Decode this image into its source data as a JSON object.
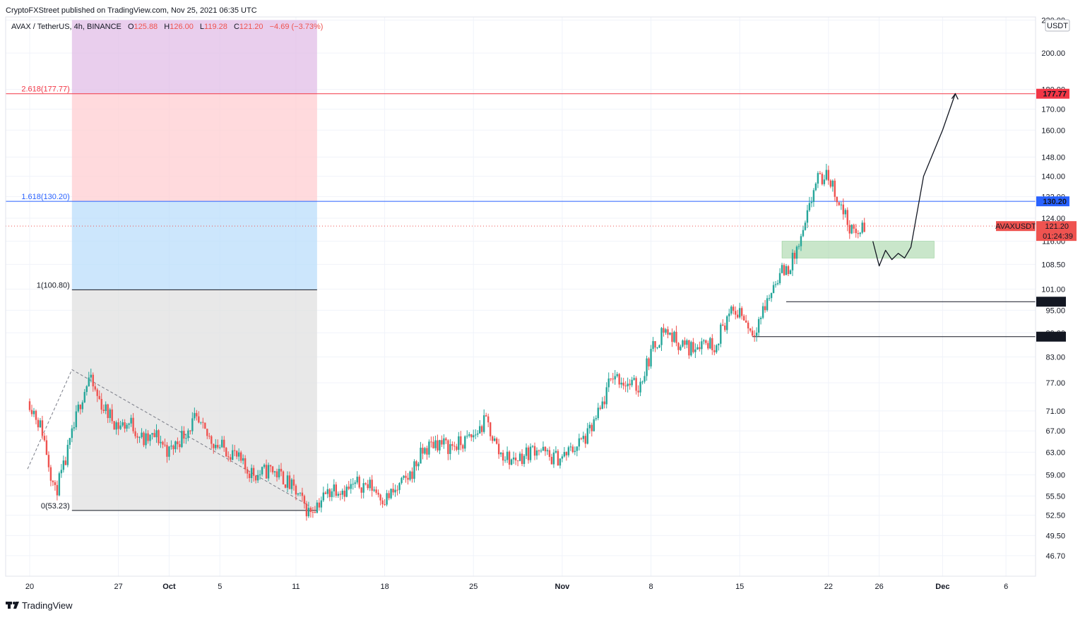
{
  "header": {
    "published": "CryptoFXStreet published on TradingView.com, Nov 25, 2021 06:35 UTC"
  },
  "legend": {
    "symbol": "AVAX / TetherUS, 4h, BINANCE",
    "o_label": "O",
    "o_value": "125.88",
    "h_label": "H",
    "h_value": "126.00",
    "l_label": "L",
    "l_value": "119.28",
    "c_label": "C",
    "c_value": "121.20",
    "change": "−4.69 (−3.73%)"
  },
  "footer": {
    "brand": "TradingView"
  },
  "colors": {
    "up": "#26a69a",
    "down": "#ef5350",
    "fib_high": "#f23645",
    "fib_mid": "#2962ff",
    "fib_base": "#131722",
    "support_zone": "#a5d6a7",
    "fib_zone_top": "#e1bee7",
    "fib_zone_red": "#ffcdd2",
    "fib_zone_blue": "#bbdefb",
    "fib_zone_grey": "#e0e0e0"
  },
  "chart_data": {
    "type": "candlestick",
    "symbol": "AVAXUSDT",
    "timeframe": "4h",
    "exchange": "BINANCE",
    "quote": "USDT",
    "y_scale": "log",
    "ylim": [
      44,
      222
    ],
    "y_ticks": [
      "220.00",
      "200.00",
      "180.00",
      "170.00",
      "160.00",
      "148.00",
      "140.00",
      "132.00",
      "124.00",
      "116.00",
      "108.50",
      "101.00",
      "95.00",
      "89.00",
      "83.00",
      "77.00",
      "71.00",
      "67.00",
      "63.00",
      "59.00",
      "55.50",
      "52.50",
      "49.50",
      "46.70"
    ],
    "x_ticks": [
      {
        "label": "20",
        "date": "2021-09-20"
      },
      {
        "label": "27",
        "date": "2021-09-27"
      },
      {
        "label": "Oct",
        "date": "2021-10-01"
      },
      {
        "label": "5",
        "date": "2021-10-05"
      },
      {
        "label": "11",
        "date": "2021-10-11"
      },
      {
        "label": "18",
        "date": "2021-10-18"
      },
      {
        "label": "25",
        "date": "2021-10-25"
      },
      {
        "label": "Nov",
        "date": "2021-11-01"
      },
      {
        "label": "8",
        "date": "2021-11-08"
      },
      {
        "label": "15",
        "date": "2021-11-15"
      },
      {
        "label": "22",
        "date": "2021-11-22"
      },
      {
        "label": "26",
        "date": "2021-11-26"
      },
      {
        "label": "Dec",
        "date": "2021-12-01"
      },
      {
        "label": "6",
        "date": "2021-12-06"
      }
    ],
    "price_path": [
      [
        "2021-09-20T00:00",
        73
      ],
      [
        "2021-09-21T00:00",
        67
      ],
      [
        "2021-09-22T00:00",
        56
      ],
      [
        "2021-09-22T16:00",
        60
      ],
      [
        "2021-09-23T08:00",
        66
      ],
      [
        "2021-09-24T00:00",
        73
      ],
      [
        "2021-09-24T16:00",
        78
      ],
      [
        "2021-09-25T08:00",
        74
      ],
      [
        "2021-09-26T00:00",
        71
      ],
      [
        "2021-09-27T00:00",
        68
      ],
      [
        "2021-09-28T00:00",
        68.5
      ],
      [
        "2021-09-29T00:00",
        65
      ],
      [
        "2021-09-30T00:00",
        66
      ],
      [
        "2021-10-01T00:00",
        63
      ],
      [
        "2021-10-02T00:00",
        66
      ],
      [
        "2021-10-03T00:00",
        69
      ],
      [
        "2021-10-04T00:00",
        66
      ],
      [
        "2021-10-05T00:00",
        64
      ],
      [
        "2021-10-06T00:00",
        63
      ],
      [
        "2021-10-07T00:00",
        60
      ],
      [
        "2021-10-08T00:00",
        59
      ],
      [
        "2021-10-09T00:00",
        60
      ],
      [
        "2021-10-10T00:00",
        58.5
      ],
      [
        "2021-10-11T00:00",
        56
      ],
      [
        "2021-10-12T00:00",
        53
      ],
      [
        "2021-10-13T00:00",
        55
      ],
      [
        "2021-10-14T00:00",
        57
      ],
      [
        "2021-10-15T00:00",
        56.5
      ],
      [
        "2021-10-16T00:00",
        57.5
      ],
      [
        "2021-10-17T00:00",
        57
      ],
      [
        "2021-10-18T00:00",
        55
      ],
      [
        "2021-10-19T00:00",
        56.5
      ],
      [
        "2021-10-20T00:00",
        59
      ],
      [
        "2021-10-21T00:00",
        63
      ],
      [
        "2021-10-22T00:00",
        65
      ],
      [
        "2021-10-23T00:00",
        64
      ],
      [
        "2021-10-24T00:00",
        64.5
      ],
      [
        "2021-10-25T00:00",
        66
      ],
      [
        "2021-10-26T00:00",
        69
      ],
      [
        "2021-10-27T00:00",
        63
      ],
      [
        "2021-10-28T00:00",
        61.5
      ],
      [
        "2021-10-29T00:00",
        62.5
      ],
      [
        "2021-10-30T00:00",
        64
      ],
      [
        "2021-10-31T00:00",
        62
      ],
      [
        "2021-11-01T00:00",
        62
      ],
      [
        "2021-11-02T00:00",
        64
      ],
      [
        "2021-11-03T00:00",
        66
      ],
      [
        "2021-11-04T00:00",
        71
      ],
      [
        "2021-11-05T00:00",
        79
      ],
      [
        "2021-11-06T00:00",
        77
      ],
      [
        "2021-11-07T00:00",
        76
      ],
      [
        "2021-11-08T00:00",
        84
      ],
      [
        "2021-11-09T00:00",
        90
      ],
      [
        "2021-11-10T00:00",
        87
      ],
      [
        "2021-11-11T00:00",
        85
      ],
      [
        "2021-11-12T00:00",
        87
      ],
      [
        "2021-11-13T00:00",
        86
      ],
      [
        "2021-11-14T00:00",
        93
      ],
      [
        "2021-11-15T00:00",
        95
      ],
      [
        "2021-11-16T00:00",
        89
      ],
      [
        "2021-11-17T00:00",
        96
      ],
      [
        "2021-11-18T00:00",
        105
      ],
      [
        "2021-11-19T00:00",
        108
      ],
      [
        "2021-11-20T00:00",
        118
      ],
      [
        "2021-11-21T00:00",
        138
      ],
      [
        "2021-11-22T00:00",
        140
      ],
      [
        "2021-11-23T00:00",
        128
      ],
      [
        "2021-11-24T00:00",
        118
      ],
      [
        "2021-11-25T00:00",
        121.2
      ]
    ],
    "current_price": "121.20",
    "current_label": "AVAXUSDT",
    "countdown": "01:24:39",
    "fib_levels": [
      {
        "ratio": "2.618",
        "price": 177.77,
        "label": "2.618(177.77)",
        "axis_label": "177.77"
      },
      {
        "ratio": "1.618",
        "price": 130.2,
        "label": "1.618(130.20)",
        "axis_label": "130.20"
      },
      {
        "ratio": "1",
        "price": 100.8,
        "label": "1(100.80)"
      },
      {
        "ratio": "0",
        "price": 53.23,
        "label": "0(53.23)"
      }
    ],
    "fib_range": {
      "from": "2021-09-23T08:00",
      "to": "2021-10-12T16:00",
      "top": 220
    },
    "fib_anchor_line": {
      "from": [
        "2021-09-19T20:00",
        60
      ],
      "peak": [
        "2021-09-23T08:00",
        80
      ],
      "to": [
        "2021-10-12T00:00",
        54
      ]
    },
    "support_zone": {
      "from": "2021-11-18T08:00",
      "to": "2021-11-30T08:00",
      "top": 116,
      "bottom": 110.5
    },
    "support_lines": [
      {
        "price": 97.38,
        "from": "2021-11-18T16:00",
        "label": "97.38"
      },
      {
        "price": 88.01,
        "from": "2021-11-16T00:00",
        "label": "88.01"
      }
    ],
    "projection_path": [
      [
        "2021-11-25T12:00",
        116
      ],
      [
        "2021-11-26T00:00",
        108
      ],
      [
        "2021-11-26T12:00",
        113
      ],
      [
        "2021-11-27T00:00",
        110
      ],
      [
        "2021-11-27T12:00",
        112
      ],
      [
        "2021-11-28T00:00",
        110.5
      ],
      [
        "2021-11-28T12:00",
        114
      ],
      [
        "2021-11-29T12:00",
        140
      ],
      [
        "2021-12-01T00:00",
        160
      ],
      [
        "2021-12-02T00:00",
        177.77
      ]
    ]
  }
}
